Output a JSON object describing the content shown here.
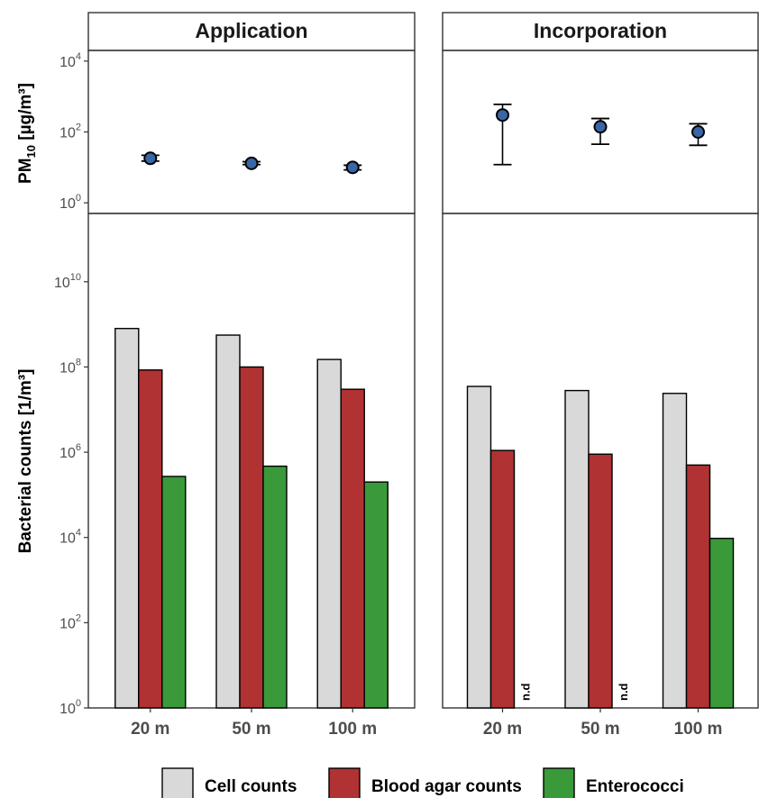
{
  "chart_data": [
    {
      "type": "scatter",
      "ylabel_main": "PM",
      "ylabel_sub": "10",
      "ylabel_tail": " [µg/m³]",
      "y_scale": "log10",
      "ylim": [
        0.5,
        20000
      ],
      "y_ticks": [
        {
          "value": 1,
          "exp": "0"
        },
        {
          "value": 100,
          "exp": "2"
        },
        {
          "value": 10000,
          "exp": "4"
        }
      ],
      "categories": [
        "20 m",
        "50 m",
        "100 m"
      ],
      "facets": [
        {
          "name": "Application",
          "points": [
            {
              "category": "20 m",
              "y": 18,
              "lo": 15,
              "hi": 22
            },
            {
              "category": "50 m",
              "y": 13,
              "lo": 12,
              "hi": 14.5
            },
            {
              "category": "100 m",
              "y": 10,
              "lo": 8.5,
              "hi": 11.5
            }
          ]
        },
        {
          "name": "Incorporation",
          "points": [
            {
              "category": "20 m",
              "y": 300,
              "lo": 12,
              "hi": 600
            },
            {
              "category": "50 m",
              "y": 140,
              "lo": 45,
              "hi": 240
            },
            {
              "category": "100 m",
              "y": 100,
              "lo": 42,
              "hi": 170
            }
          ]
        }
      ],
      "point_color": "#3a66a6"
    },
    {
      "type": "bar",
      "ylabel": "Bacterial counts [1/m³]",
      "y_scale": "log10",
      "ylim": [
        1,
        400000000000
      ],
      "y_ticks": [
        {
          "value": 1,
          "exp": "0"
        },
        {
          "value": 100,
          "exp": "2"
        },
        {
          "value": 10000,
          "exp": "4"
        },
        {
          "value": 1000000,
          "exp": "6"
        },
        {
          "value": 100000000,
          "exp": "8"
        },
        {
          "value": 10000000000,
          "exp": "10"
        }
      ],
      "categories": [
        "20 m",
        "50 m",
        "100 m"
      ],
      "series": [
        {
          "name": "Cell counts",
          "color": "#d9d9d9"
        },
        {
          "name": "Blood agar counts",
          "color": "#b03232"
        },
        {
          "name": "Enterococci",
          "color": "#3a9a3a"
        }
      ],
      "facets": [
        {
          "name": "Application",
          "values": [
            [
              800000000,
              85000000,
              270000
            ],
            [
              560000000,
              100000000,
              470000
            ],
            [
              150000000,
              30000000,
              200000
            ]
          ]
        },
        {
          "name": "Incorporation",
          "values": [
            [
              35000000,
              1100000,
              null
            ],
            [
              28000000,
              900000,
              null
            ],
            [
              24000000,
              500000,
              9500
            ]
          ]
        }
      ],
      "missing_label": "n.d",
      "tick_base": "10"
    }
  ]
}
